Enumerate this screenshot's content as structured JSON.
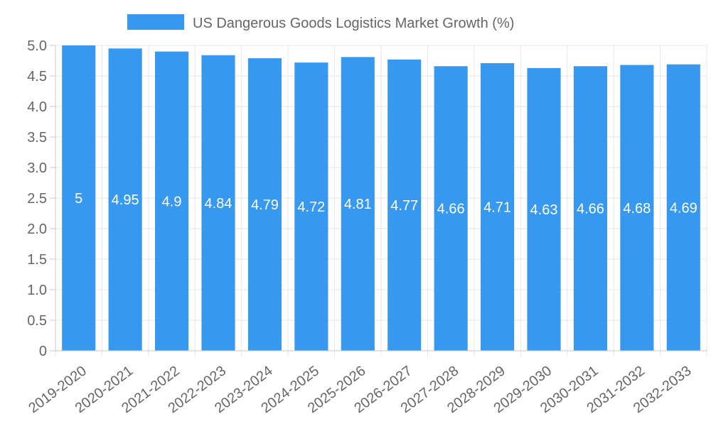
{
  "chart_data": {
    "type": "bar",
    "legend_position": "top",
    "categories": [
      "2019-2020",
      "2020-2021",
      "2021-2022",
      "2022-2023",
      "2023-2024",
      "2024-2025",
      "2025-2026",
      "2026-2027",
      "2027-2028",
      "2028-2029",
      "2029-2030",
      "2030-2031",
      "2031-2032",
      "2032-2033"
    ],
    "series": [
      {
        "name": "US Dangerous Goods Logistics Market Growth (%)",
        "color": "#3699ef",
        "values": [
          5,
          4.95,
          4.9,
          4.84,
          4.79,
          4.72,
          4.81,
          4.77,
          4.66,
          4.71,
          4.63,
          4.66,
          4.68,
          4.69
        ],
        "labels": [
          "5",
          "4.95",
          "4.9",
          "4.84",
          "4.79",
          "4.72",
          "4.81",
          "4.77",
          "4.66",
          "4.71",
          "4.63",
          "4.66",
          "4.68",
          "4.69"
        ]
      }
    ],
    "ylim": [
      0,
      5
    ],
    "yticks": [
      "0",
      "0.5",
      "1.0",
      "1.5",
      "2.0",
      "2.5",
      "3.0",
      "3.5",
      "4.0",
      "4.5",
      "5.0"
    ],
    "grid": true,
    "xlabel": "",
    "ylabel": ""
  }
}
